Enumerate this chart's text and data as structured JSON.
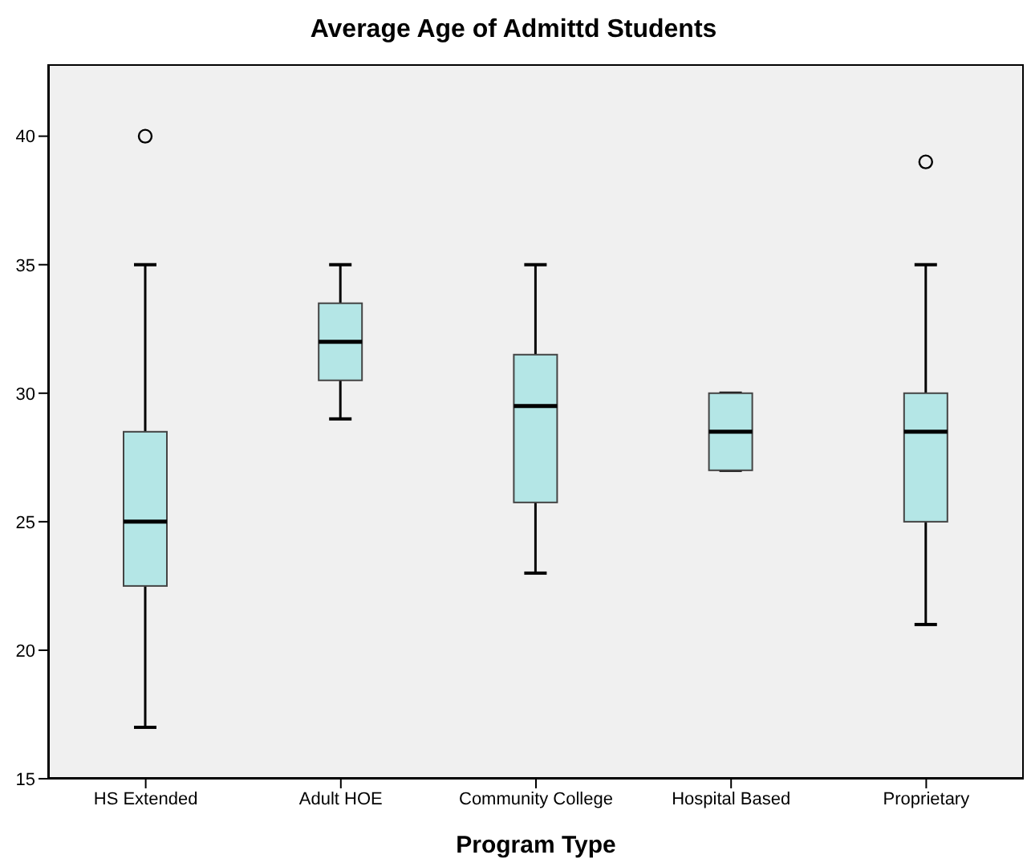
{
  "chart_data": {
    "type": "box",
    "title": "Average Age of Admittd Students",
    "xlabel": "Program Type",
    "categories": [
      "HS Extended",
      "Adult HOE",
      "Community College",
      "Hospital Based",
      "Proprietary"
    ],
    "color": "#b4e6e6",
    "boxes": [
      {
        "low": 17,
        "q1": 22.5,
        "median": 25,
        "q3": 28.5,
        "high": 35,
        "outliers": [
          40
        ]
      },
      {
        "low": 29,
        "q1": 30.5,
        "median": 32,
        "q3": 33.5,
        "high": 35
      },
      {
        "low": 23,
        "q1": 25.75,
        "median": 29.5,
        "q3": 31.5,
        "high": 35
      },
      {
        "low": 27,
        "q1": 27,
        "median": 28.5,
        "q3": 30,
        "high": 30
      },
      {
        "low": 21,
        "q1": 25,
        "median": 28.5,
        "q3": 30,
        "high": 35,
        "outliers": [
          39
        ]
      }
    ],
    "ylim": [
      15,
      42.8
    ],
    "yticks": [
      15,
      20,
      25,
      30,
      35,
      40
    ]
  }
}
